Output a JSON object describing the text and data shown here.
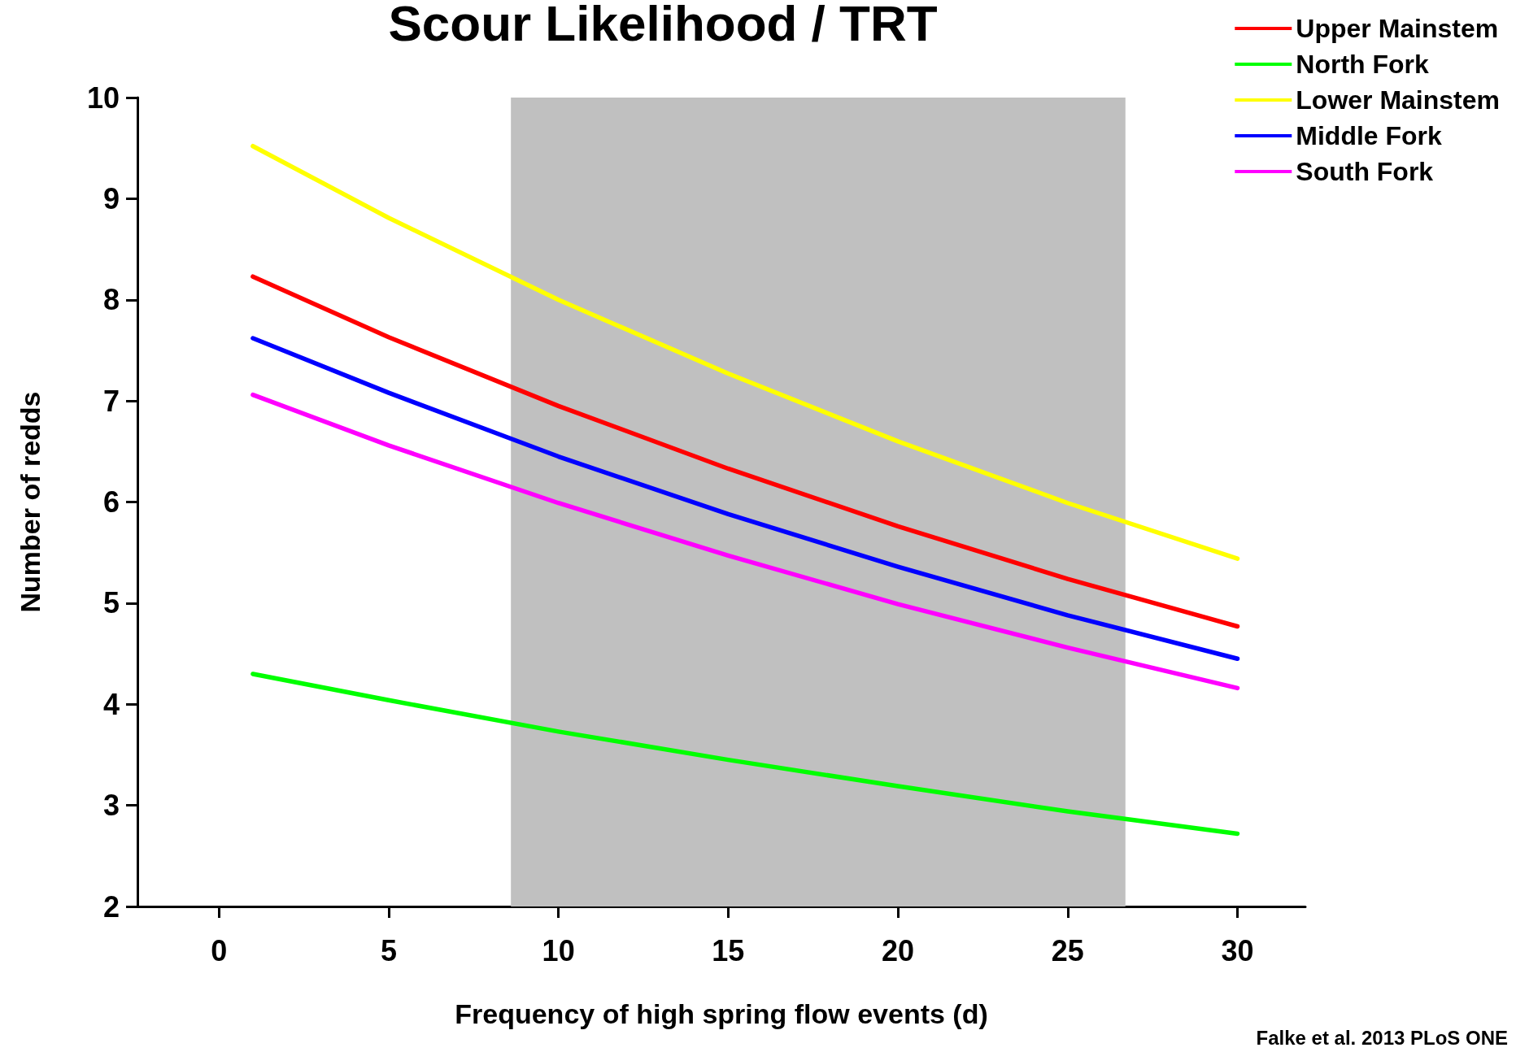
{
  "chart_data": {
    "type": "line",
    "title": "Scour Likelihood / TRT",
    "xlabel": "Frequency of high spring flow events (d)",
    "ylabel": "Number of redds",
    "annotations": [
      "Falke et al. 2013 PLoS ONE"
    ],
    "x": [
      1,
      5,
      10,
      15,
      20,
      25,
      30
    ],
    "series": [
      {
        "name": "Upper Mainstem",
        "color": "#ff0000",
        "values": [
          8.23,
          7.63,
          6.95,
          6.33,
          5.76,
          5.24,
          4.77
        ]
      },
      {
        "name": "North Fork",
        "color": "#00ff00",
        "values": [
          4.3,
          4.04,
          3.73,
          3.45,
          3.19,
          2.94,
          2.72
        ]
      },
      {
        "name": "Lower Mainstem",
        "color": "#ffff00",
        "values": [
          9.52,
          8.81,
          8.0,
          7.27,
          6.6,
          5.99,
          5.44
        ]
      },
      {
        "name": "Middle Fork",
        "color": "#0000ff",
        "values": [
          7.62,
          7.08,
          6.45,
          5.88,
          5.36,
          4.88,
          4.45
        ]
      },
      {
        "name": "South Fork",
        "color": "#ff00ff",
        "values": [
          7.06,
          6.56,
          5.99,
          5.47,
          4.99,
          4.56,
          4.16
        ]
      }
    ],
    "xlim": [
      -2.4,
      32
    ],
    "xticks": [
      0,
      5,
      10,
      15,
      20,
      25,
      30
    ],
    "ylim": [
      2,
      10
    ],
    "yticks": [
      2,
      3,
      4,
      5,
      6,
      7,
      8,
      9,
      10
    ],
    "bands": [
      {
        "axis": "x",
        "from": 8.6,
        "to": 26.7,
        "color": "#c0c0c0"
      }
    ],
    "grid": false,
    "legend": "top right",
    "marker": "none",
    "line_style": "solid"
  }
}
